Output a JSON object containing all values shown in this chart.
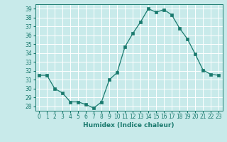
{
  "x": [
    0,
    1,
    2,
    3,
    4,
    5,
    6,
    7,
    8,
    9,
    10,
    11,
    12,
    13,
    14,
    15,
    16,
    17,
    18,
    19,
    20,
    21,
    22,
    23
  ],
  "y": [
    31.5,
    31.5,
    30.0,
    29.5,
    28.5,
    28.5,
    28.2,
    27.8,
    28.5,
    31.0,
    31.8,
    34.7,
    36.2,
    37.5,
    39.0,
    38.6,
    38.9,
    38.3,
    36.8,
    35.6,
    33.9,
    32.1,
    31.6,
    31.5
  ],
  "line_color": "#1a7a6e",
  "marker": "s",
  "marker_size": 2.5,
  "bg_color": "#c8eaea",
  "grid_color": "#ffffff",
  "xlabel": "Humidex (Indice chaleur)",
  "ylabel": "",
  "ylim": [
    27.5,
    39.5
  ],
  "xlim": [
    -0.5,
    23.5
  ],
  "yticks": [
    28,
    29,
    30,
    31,
    32,
    33,
    34,
    35,
    36,
    37,
    38,
    39
  ],
  "xticks": [
    0,
    1,
    2,
    3,
    4,
    5,
    6,
    7,
    8,
    9,
    10,
    11,
    12,
    13,
    14,
    15,
    16,
    17,
    18,
    19,
    20,
    21,
    22,
    23
  ],
  "label_fontsize": 6.5,
  "tick_fontsize": 5.5
}
